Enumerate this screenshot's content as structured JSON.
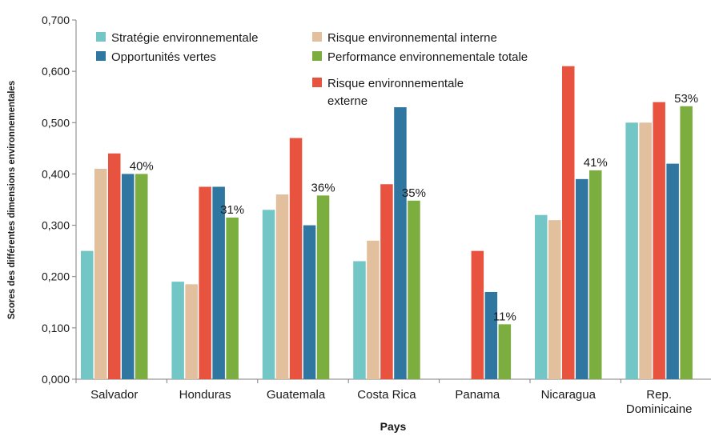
{
  "chart_data": {
    "type": "bar",
    "title": "",
    "xlabel": "Pays",
    "ylabel": "Scores des différentes dimensions environnementales",
    "ylim": [
      0,
      0.7
    ],
    "yticks": [
      "0,000",
      "0,100",
      "0,200",
      "0,300",
      "0,400",
      "0,500",
      "0,600",
      "0,700"
    ],
    "categories": [
      "Salvador",
      "Honduras",
      "Guatemala",
      "Costa Rica",
      "Panama",
      "Nicaragua",
      "Rep. Dominicaine"
    ],
    "category_lines": [
      [
        "Salvador"
      ],
      [
        "Honduras"
      ],
      [
        "Guatemala"
      ],
      [
        "Costa Rica"
      ],
      [
        "Panama"
      ],
      [
        "Nicaragua"
      ],
      [
        "Rep.",
        "Dominicaine"
      ]
    ],
    "series": [
      {
        "name": "Stratégie environnementale",
        "color": "#72c6c6",
        "values": [
          0.25,
          0.19,
          0.33,
          0.23,
          null,
          0.32,
          0.5
        ]
      },
      {
        "name": "Risque environnemental interne",
        "color": "#e2bf9d",
        "values": [
          0.41,
          0.185,
          0.36,
          0.27,
          null,
          0.31,
          0.5
        ]
      },
      {
        "name": "Risque environnementale externe",
        "color": "#e8533f",
        "values": [
          0.44,
          0.375,
          0.47,
          0.38,
          0.25,
          0.61,
          0.54
        ]
      },
      {
        "name": "Opportunités vertes",
        "color": "#2f76a1",
        "values": [
          0.4,
          0.375,
          0.3,
          0.53,
          0.17,
          0.39,
          0.42
        ]
      },
      {
        "name": "Performance environnementale totale",
        "color": "#7bae3f",
        "values": [
          0.4,
          0.315,
          0.358,
          0.348,
          0.107,
          0.407,
          0.532
        ]
      }
    ],
    "data_labels": [
      "40%",
      "31%",
      "36%",
      "35%",
      "11%",
      "41%",
      "53%"
    ],
    "legend": {
      "placement": "top-left",
      "items": [
        {
          "series": 0,
          "lines": [
            "Stratégie environnementale"
          ]
        },
        {
          "series": 1,
          "lines": [
            "Risque environnemental interne"
          ]
        },
        {
          "series": 3,
          "lines": [
            "Opportunités vertes"
          ]
        },
        {
          "series": 4,
          "lines": [
            "Performance environnementale totale"
          ]
        },
        {
          "series": 2,
          "lines": [
            "Risque environnementale",
            "externe"
          ]
        }
      ]
    },
    "grid": false
  }
}
